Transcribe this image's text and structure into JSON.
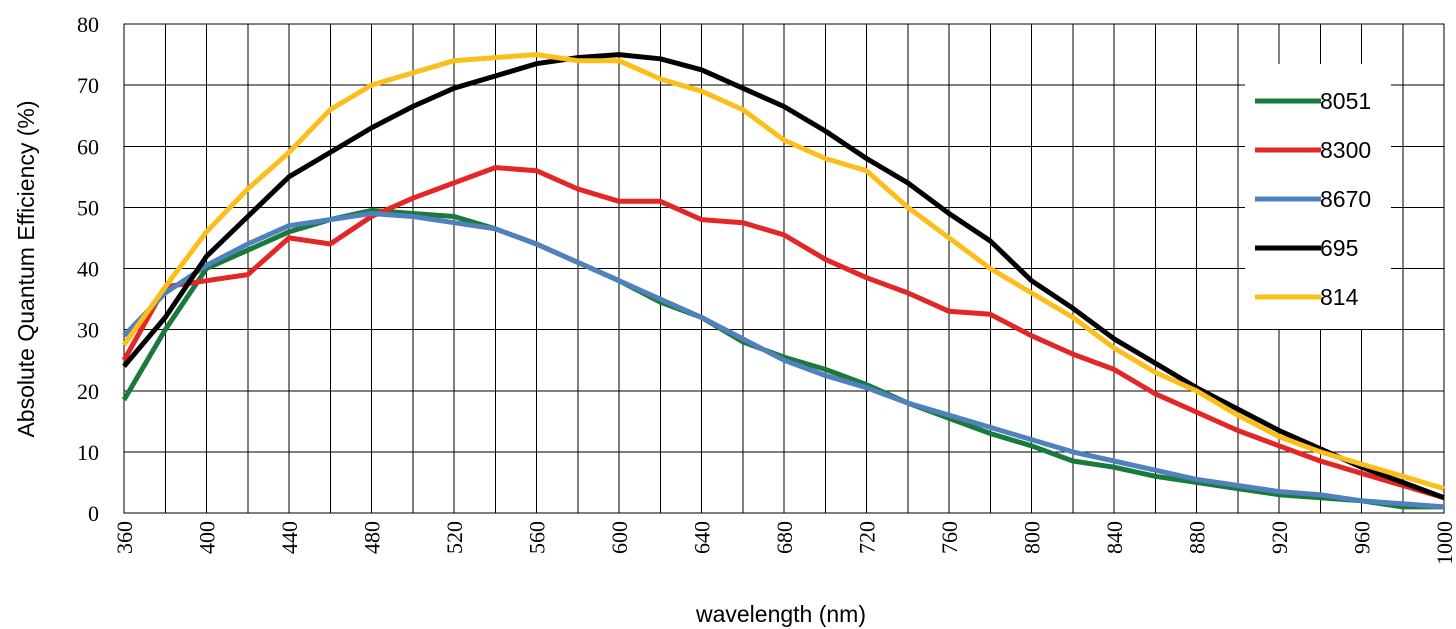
{
  "chart_data": {
    "type": "line",
    "xlabel": "wavelength (nm)",
    "ylabel": "Absolute Quantum Efficiency (%)",
    "xlim": [
      360,
      1000
    ],
    "ylim": [
      0,
      80
    ],
    "x_ticks": [
      360,
      400,
      440,
      480,
      520,
      560,
      600,
      640,
      680,
      720,
      760,
      800,
      840,
      880,
      920,
      960,
      1000
    ],
    "y_ticks": [
      0,
      10,
      20,
      30,
      40,
      50,
      60,
      70,
      80
    ],
    "x_grid_step": 20,
    "grid": true,
    "legend_position": "right",
    "x": [
      360,
      380,
      400,
      420,
      440,
      460,
      480,
      500,
      520,
      540,
      560,
      580,
      600,
      620,
      640,
      660,
      680,
      700,
      720,
      740,
      760,
      780,
      800,
      820,
      840,
      860,
      880,
      900,
      920,
      940,
      960,
      980,
      1000
    ],
    "series": [
      {
        "name": "8051",
        "color": "#1a7a3c",
        "values": [
          18.5,
          30,
          40,
          43,
          46,
          48,
          49.5,
          49,
          48.5,
          46.5,
          44,
          41,
          38,
          34.5,
          32,
          28,
          25.5,
          23.5,
          21,
          18,
          15.5,
          13,
          11,
          8.5,
          7.5,
          6,
          5,
          4,
          3,
          2.5,
          2,
          1,
          1
        ]
      },
      {
        "name": "8300",
        "color": "#e32727",
        "values": [
          25,
          37,
          38,
          39,
          45,
          44,
          48.5,
          51.5,
          54,
          56.5,
          56,
          53,
          51,
          51,
          48,
          47.5,
          45.5,
          41.5,
          38.5,
          36,
          33,
          32.5,
          29,
          26,
          23.5,
          19.5,
          16.5,
          13.5,
          11,
          8.5,
          6.5,
          4.5,
          2.5
        ]
      },
      {
        "name": "8670",
        "color": "#4f81bd",
        "values": [
          29,
          36,
          40.5,
          44,
          47,
          48,
          49,
          48.5,
          47.5,
          46.5,
          44,
          41,
          38,
          35,
          32,
          28.5,
          25,
          22.5,
          20.5,
          18,
          16,
          14,
          12,
          10,
          8.5,
          7,
          5.5,
          4.5,
          3.5,
          3,
          2,
          1.5,
          1
        ]
      },
      {
        "name": "695",
        "color": "#000000",
        "values": [
          24,
          32,
          42,
          48.5,
          55,
          59,
          63,
          66.5,
          69.5,
          71.5,
          73.5,
          74.5,
          75,
          74.3,
          72.5,
          69.5,
          66.5,
          62.5,
          58,
          54,
          49,
          44.5,
          38,
          33.5,
          28.5,
          24.5,
          20.5,
          17,
          13.5,
          10.5,
          7.5,
          5,
          2.5
        ]
      },
      {
        "name": "814",
        "color": "#fbbe1a",
        "values": [
          27.5,
          37,
          46,
          53,
          59,
          66,
          70,
          72,
          74,
          74.5,
          75,
          74,
          74,
          71,
          69,
          66,
          61,
          58,
          56,
          50,
          45,
          40,
          36,
          32,
          27,
          23,
          20,
          16,
          12.5,
          10,
          8,
          6,
          4
        ]
      }
    ]
  }
}
